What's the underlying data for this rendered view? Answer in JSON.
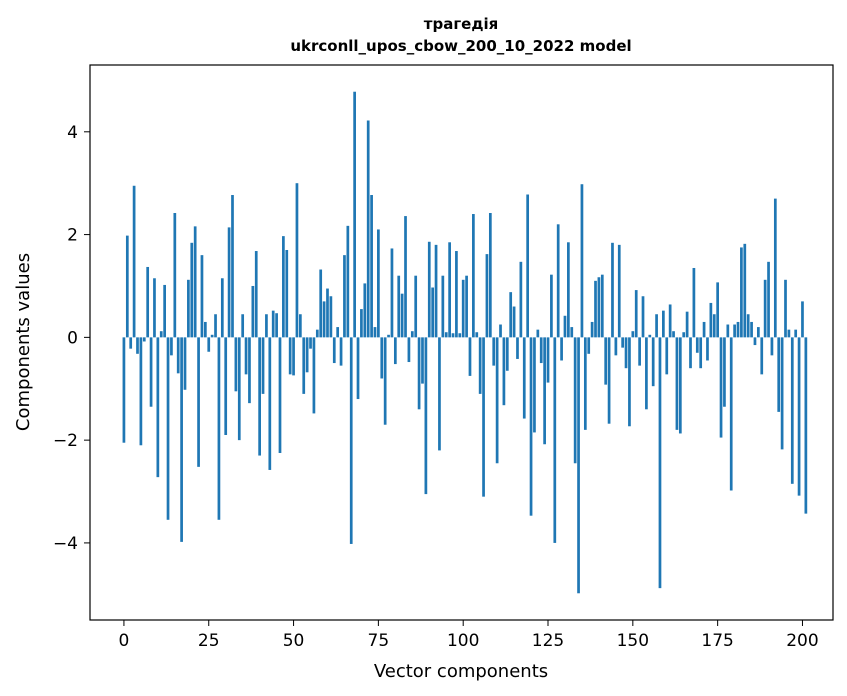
{
  "chart_data": {
    "type": "bar",
    "title": "трагедія",
    "subtitle": "ukrconll_upos_cbow_200_10_2022 model",
    "xlabel": "Vector components",
    "ylabel": "Components values",
    "xlim": [
      -10,
      209
    ],
    "ylim": [
      -5.5,
      5.3
    ],
    "xticks": [
      0,
      25,
      50,
      75,
      100,
      125,
      150,
      175,
      200
    ],
    "yticks": [
      -4,
      -2,
      0,
      2,
      4
    ],
    "ytick_labels": [
      "−4",
      "−2",
      "0",
      "2",
      "4"
    ],
    "grid": false,
    "bar_color": "#1f77b4",
    "values": [
      -2.05,
      1.98,
      -0.22,
      2.95,
      -0.32,
      -2.1,
      -0.08,
      1.37,
      -1.35,
      1.15,
      -2.72,
      0.12,
      1.02,
      -3.55,
      -0.35,
      2.42,
      -0.7,
      -3.98,
      -1.02,
      1.12,
      1.84,
      2.16,
      -2.52,
      1.6,
      0.3,
      -0.28,
      0.05,
      0.45,
      -3.55,
      1.15,
      -1.9,
      2.14,
      2.77,
      -1.05,
      -2.0,
      0.45,
      -0.72,
      -1.28,
      1.0,
      1.68,
      -2.3,
      -1.1,
      0.45,
      -2.58,
      0.52,
      0.47,
      -2.25,
      1.97,
      1.7,
      -0.72,
      -0.74,
      3.0,
      0.45,
      -1.1,
      -0.68,
      -0.22,
      -1.48,
      0.15,
      1.32,
      0.7,
      0.95,
      0.8,
      -0.5,
      0.2,
      -0.55,
      1.6,
      2.17,
      -4.02,
      4.78,
      -1.2,
      0.55,
      1.05,
      4.22,
      2.77,
      0.2,
      2.1,
      -0.8,
      -1.7,
      0.05,
      1.73,
      -0.52,
      1.2,
      0.85,
      2.36,
      -0.48,
      0.12,
      1.2,
      -1.4,
      -0.9,
      -3.05,
      1.86,
      0.97,
      1.8,
      -2.2,
      1.2,
      0.1,
      1.85,
      0.08,
      1.68,
      0.08,
      1.12,
      1.2,
      -0.75,
      2.4,
      0.1,
      -1.1,
      -3.1,
      1.62,
      2.42,
      -0.55,
      -2.45,
      0.25,
      -1.32,
      -0.65,
      0.88,
      0.6,
      -0.42,
      1.47,
      -1.58,
      2.78,
      -3.47,
      -1.85,
      0.15,
      -0.5,
      -2.08,
      -0.88,
      1.22,
      -4.0,
      2.2,
      -0.45,
      0.42,
      1.85,
      0.2,
      -2.45,
      -4.98,
      2.98,
      -1.8,
      -0.32,
      0.3,
      1.1,
      1.17,
      1.22,
      -0.92,
      -1.68,
      1.84,
      -0.35,
      1.8,
      -0.2,
      -0.6,
      -1.73,
      0.12,
      0.92,
      -0.55,
      0.8,
      -1.4,
      0.05,
      -0.95,
      0.45,
      -4.88,
      0.52,
      -0.72,
      0.64,
      0.12,
      -1.8,
      -1.87,
      0.1,
      0.5,
      -0.6,
      1.35,
      -0.3,
      -0.6,
      0.3,
      -0.45,
      0.67,
      0.45,
      1.07,
      -1.95,
      -1.35,
      0.25,
      -2.98,
      0.25,
      0.3,
      1.75,
      1.82,
      0.45,
      0.3,
      -0.15,
      0.2,
      -0.72,
      1.12,
      1.47,
      -0.35,
      2.7,
      -1.45,
      -2.18,
      1.12,
      0.15,
      -2.85,
      0.15,
      -3.08,
      0.7,
      -3.43
    ]
  }
}
